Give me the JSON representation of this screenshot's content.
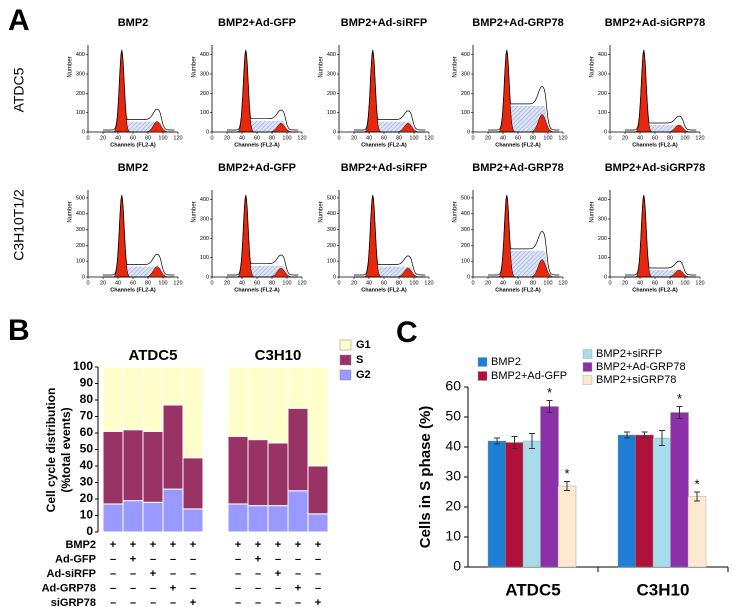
{
  "panel_labels": [
    "A",
    "B",
    "C"
  ],
  "row_labels": [
    "ATDC5",
    "C3H10T1/2"
  ],
  "chart_data": [
    {
      "type": "flow-histogram",
      "title": "BMP2",
      "xlabel": "Channels (FL2-A)",
      "ylabel": "Number",
      "xlim": [
        0,
        120
      ],
      "xticks": [
        0,
        20,
        40,
        60,
        80,
        100,
        120
      ],
      "ylim": [
        0,
        450
      ],
      "yticks": [
        0,
        100,
        200,
        300,
        400
      ]
    },
    {
      "type": "flow-histogram",
      "title": "BMP2+Ad-GFP",
      "xlabel": "Channels (FL2-A)",
      "ylabel": "Number",
      "xlim": [
        0,
        120
      ],
      "xticks": [
        0,
        20,
        40,
        60,
        80,
        100,
        120
      ],
      "ylim": [
        0,
        450
      ],
      "yticks": [
        0,
        100,
        200,
        300,
        400
      ]
    },
    {
      "type": "flow-histogram",
      "title": "BMP2+Ad-siRFP",
      "xlabel": "Channels (FL2-A)",
      "ylabel": "Number",
      "xlim": [
        0,
        120
      ],
      "xticks": [
        0,
        20,
        40,
        60,
        80,
        100,
        120
      ],
      "ylim": [
        0,
        450
      ],
      "yticks": [
        0,
        100,
        200,
        300,
        400
      ]
    },
    {
      "type": "flow-histogram",
      "title": "BMP2+Ad-GRP78",
      "xlabel": "Channels (FL2-A)",
      "ylabel": "Number",
      "xlim": [
        0,
        120
      ],
      "xticks": [
        0,
        20,
        40,
        60,
        80,
        100,
        120
      ],
      "ylim": [
        0,
        450
      ],
      "yticks": [
        0,
        100,
        200,
        300,
        400
      ]
    },
    {
      "type": "flow-histogram",
      "title": "BMP2+Ad-siGRP78",
      "xlabel": "Channels (FL2-A)",
      "ylabel": "Number",
      "xlim": [
        0,
        120
      ],
      "xticks": [
        0,
        20,
        40,
        60,
        80,
        100,
        120
      ],
      "ylim": [
        0,
        450
      ],
      "yticks": [
        0,
        100,
        200,
        300,
        400
      ]
    },
    {
      "type": "flow-histogram",
      "title": "BMP2",
      "xlabel": "Channels (FL2-A)",
      "ylabel": "Number",
      "xlim": [
        0,
        120
      ],
      "xticks": [
        0,
        20,
        40,
        60,
        80,
        100,
        120
      ],
      "ylim": [
        0,
        550
      ],
      "yticks": [
        0,
        100,
        200,
        300,
        400,
        500
      ]
    },
    {
      "type": "flow-histogram",
      "title": "BMP2+Ad-GFP",
      "xlabel": "Channels (FL2-A)",
      "ylabel": "Number",
      "xlim": [
        0,
        120
      ],
      "xticks": [
        0,
        20,
        40,
        60,
        80,
        100,
        120
      ],
      "ylim": [
        0,
        450
      ],
      "yticks": [
        0,
        100,
        200,
        300,
        400
      ]
    },
    {
      "type": "flow-histogram",
      "title": "BMP2+Ad-siRFP",
      "xlabel": "Channels (FL2-A)",
      "ylabel": "Number",
      "xlim": [
        0,
        120
      ],
      "xticks": [
        0,
        20,
        40,
        60,
        80,
        100,
        120
      ],
      "ylim": [
        0,
        550
      ],
      "yticks": [
        0,
        100,
        200,
        300,
        400,
        500
      ]
    },
    {
      "type": "flow-histogram",
      "title": "BMP2+Ad-GRP78",
      "xlabel": "Channels (FL2-A)",
      "ylabel": "Number",
      "xlim": [
        0,
        120
      ],
      "xticks": [
        0,
        20,
        40,
        60,
        80,
        100,
        120
      ],
      "ylim": [
        0,
        550
      ],
      "yticks": [
        0,
        100,
        200,
        300,
        400,
        500
      ]
    },
    {
      "type": "flow-histogram",
      "title": "BMP2+Ad-siGRP78",
      "xlabel": "Channels (FL2-A)",
      "ylabel": "Number",
      "xlim": [
        0,
        120
      ],
      "xticks": [
        0,
        20,
        40,
        60,
        80,
        100,
        120
      ],
      "ylim": [
        0,
        450
      ],
      "yticks": [
        0,
        100,
        200,
        300,
        400
      ]
    },
    {
      "type": "stacked-bar",
      "ylabel": [
        "Cell cycle distribution",
        "(%total events)"
      ],
      "groups": [
        "ATDC5",
        "C3H10"
      ],
      "categories": [
        null,
        null,
        null,
        null,
        null,
        null,
        null,
        null,
        null,
        null
      ],
      "series": [
        {
          "name": "G2",
          "color": "#9999ff",
          "values": [
            17,
            19,
            18,
            26,
            14,
            17,
            16,
            16,
            25,
            11
          ]
        },
        {
          "name": "S",
          "color": "#993366",
          "values": [
            44,
            43,
            43,
            51,
            31,
            41,
            40,
            38,
            50,
            29
          ]
        },
        {
          "name": "G1",
          "color": "#ffffcc",
          "values": [
            39,
            38,
            39,
            23,
            55,
            42,
            44,
            46,
            25,
            60
          ]
        }
      ],
      "ylim": [
        0,
        100
      ],
      "yticks": [
        0,
        10,
        20,
        30,
        40,
        50,
        60,
        70,
        80,
        90,
        100
      ],
      "treatment_rows": [
        {
          "label": "BMP2",
          "marks": [
            "+",
            "+",
            "+",
            "+",
            "+",
            "+",
            "+",
            "+",
            "+",
            "+"
          ]
        },
        {
          "label": "Ad-GFP",
          "marks": [
            "–",
            "+",
            "–",
            "–",
            "–",
            "–",
            "+",
            "–",
            "–",
            "–"
          ]
        },
        {
          "label": "Ad-siRFP",
          "marks": [
            "–",
            "–",
            "+",
            "–",
            "–",
            "–",
            "–",
            "+",
            "–",
            "–"
          ]
        },
        {
          "label": "Ad-GRP78",
          "marks": [
            "–",
            "–",
            "–",
            "+",
            "–",
            "–",
            "–",
            "–",
            "+",
            "–"
          ]
        },
        {
          "label": "siGRP78",
          "marks": [
            "–",
            "–",
            "–",
            "–",
            "+",
            "–",
            "–",
            "–",
            "–",
            "+"
          ]
        }
      ]
    },
    {
      "type": "grouped-bar",
      "ylabel": "Cells in S  phase (%)",
      "categories": [
        "ATDC5",
        "C3H10"
      ],
      "series": [
        {
          "name": "BMP2",
          "color": "#1f7fd4",
          "values": [
            42,
            44
          ],
          "errors": [
            1,
            1
          ]
        },
        {
          "name": "BMP2+Ad-GFP",
          "color": "#b0103a",
          "values": [
            41.5,
            44
          ],
          "errors": [
            2,
            1
          ]
        },
        {
          "name": "BMP2+siRFP",
          "color": "#a8dcea",
          "values": [
            42,
            43
          ],
          "errors": [
            2.5,
            2.5
          ]
        },
        {
          "name": "BMP2+Ad-GRP78",
          "color": "#8b30a8",
          "values": [
            53.5,
            51.5
          ],
          "errors": [
            2,
            2
          ],
          "annotations": [
            "*",
            "*"
          ]
        },
        {
          "name": "BMP2+siGRP78",
          "color": "#fde8d0",
          "values": [
            27,
            23.5
          ],
          "errors": [
            1.5,
            1.5
          ],
          "annotations": [
            "*",
            "*"
          ]
        }
      ],
      "ylim": [
        0,
        60
      ],
      "yticks": [
        0,
        10,
        20,
        30,
        40,
        50,
        60
      ]
    }
  ]
}
